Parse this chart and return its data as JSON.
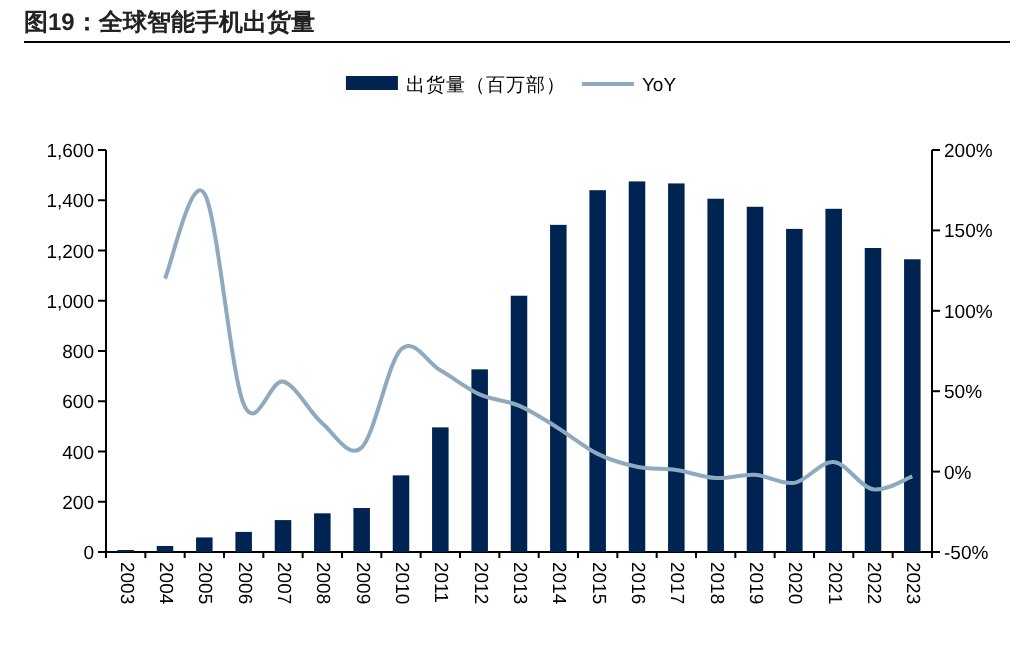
{
  "chart_data": {
    "type": "bar",
    "title": "图19：全球智能手机出货量",
    "legend": "top",
    "categories": [
      "2003",
      "2004",
      "2005",
      "2006",
      "2007",
      "2008",
      "2009",
      "2010",
      "2011",
      "2012",
      "2013",
      "2014",
      "2015",
      "2016",
      "2017",
      "2018",
      "2019",
      "2020",
      "2021",
      "2022",
      "2023"
    ],
    "series": [
      {
        "name": "出货量（百万部）",
        "color": "#002452",
        "values": [
          8,
          24,
          58,
          80,
          127,
          154,
          175,
          305,
          496,
          727,
          1020,
          1302,
          1440,
          1475,
          1467,
          1406,
          1374,
          1286,
          1366,
          1210,
          1165
        ]
      },
      {
        "name": "YoY",
        "type": "line",
        "axis": "y2",
        "color": "#8fa9bf",
        "values": [
          null,
          120,
          173,
          42,
          56,
          30,
          15,
          76,
          63,
          48,
          41,
          27,
          11,
          3,
          1,
          -4,
          -2,
          -7,
          6,
          -11,
          -3
        ]
      }
    ],
    "ylim": [
      0,
      1600
    ],
    "yticks": [
      0,
      200,
      400,
      600,
      800,
      {
        "value": 1000,
        "label": "1,000"
      },
      {
        "value": 1200,
        "label": "1,200"
      },
      {
        "value": 1400,
        "label": "1,400"
      },
      {
        "value": 1600,
        "label": "1,600"
      }
    ],
    "y2lim": [
      -50,
      200
    ],
    "y2ticks": [
      {
        "value": -50,
        "label": "-50%"
      },
      {
        "value": 0,
        "label": "0%"
      },
      {
        "value": 50,
        "label": "50%"
      },
      {
        "value": 100,
        "label": "100%"
      },
      {
        "value": 150,
        "label": "150%"
      },
      {
        "value": 200,
        "label": "200%"
      }
    ]
  }
}
